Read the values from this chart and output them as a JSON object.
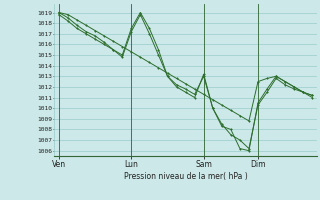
{
  "background_color": "#cce8e8",
  "grid_color": "#99cccc",
  "line_color": "#2d6e2d",
  "marker_color": "#2d6e2d",
  "xlabel_text": "Pression niveau de la mer( hPa )",
  "ylim": [
    1005.5,
    1019.8
  ],
  "yticks": [
    1006,
    1007,
    1008,
    1009,
    1010,
    1011,
    1012,
    1013,
    1014,
    1015,
    1016,
    1017,
    1018,
    1019
  ],
  "xtick_labels": [
    "Ven",
    "Lun",
    "Sam",
    "Dim"
  ],
  "xtick_positions": [
    0,
    8,
    16,
    22
  ],
  "xlim": [
    -0.5,
    28.5
  ],
  "series1_x": [
    0,
    1,
    2,
    3,
    4,
    5,
    6,
    7,
    8,
    9,
    10,
    11,
    12,
    13,
    14,
    15,
    16,
    17,
    18,
    19,
    20,
    21,
    22,
    23,
    24,
    25,
    26,
    27,
    28
  ],
  "series1_y": [
    1019.0,
    1018.8,
    1018.3,
    1017.8,
    1017.3,
    1016.8,
    1016.3,
    1015.8,
    1015.3,
    1014.8,
    1014.3,
    1013.8,
    1013.3,
    1012.8,
    1012.3,
    1011.8,
    1011.3,
    1010.8,
    1010.3,
    1009.8,
    1009.3,
    1008.8,
    1012.5,
    1012.8,
    1013.0,
    1012.5,
    1012.0,
    1011.5,
    1011.2
  ],
  "series2_x": [
    0,
    1,
    2,
    3,
    4,
    5,
    6,
    7,
    8,
    9,
    10,
    11,
    12,
    13,
    14,
    15,
    16,
    17,
    18,
    19,
    20,
    21,
    22,
    23,
    24,
    25,
    26,
    27,
    28
  ],
  "series2_y": [
    1018.8,
    1018.2,
    1017.5,
    1017.0,
    1016.5,
    1016.0,
    1015.5,
    1015.0,
    1017.5,
    1019.0,
    1017.5,
    1015.5,
    1013.0,
    1012.0,
    1011.5,
    1011.0,
    1013.2,
    1010.0,
    1008.3,
    1008.0,
    1006.2,
    1006.0,
    1010.5,
    1011.8,
    1013.0,
    1012.5,
    1012.0,
    1011.5,
    1011.2
  ],
  "series3_x": [
    0,
    1,
    2,
    3,
    4,
    5,
    6,
    7,
    8,
    9,
    10,
    11,
    12,
    13,
    14,
    15,
    16,
    17,
    18,
    19,
    20,
    21,
    22,
    23,
    24,
    25,
    26,
    27,
    28
  ],
  "series3_y": [
    1019.0,
    1018.5,
    1017.8,
    1017.2,
    1016.8,
    1016.2,
    1015.5,
    1014.8,
    1017.2,
    1018.8,
    1017.0,
    1015.0,
    1013.0,
    1012.2,
    1011.8,
    1011.3,
    1013.0,
    1010.0,
    1008.5,
    1007.5,
    1007.0,
    1006.2,
    1010.3,
    1011.5,
    1012.8,
    1012.2,
    1011.8,
    1011.5,
    1011.0
  ]
}
